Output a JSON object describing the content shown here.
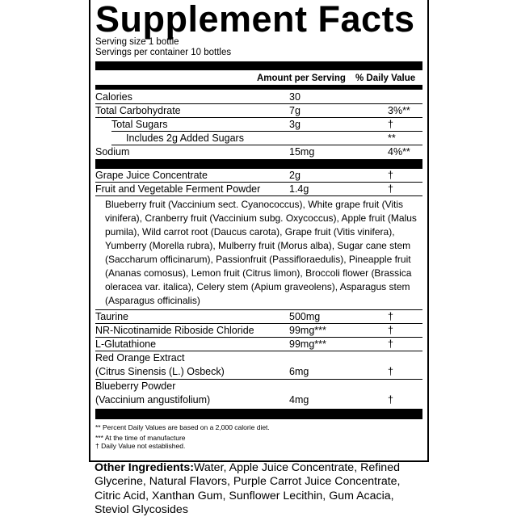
{
  "title": "Supplement Facts",
  "serving_size": "Serving size 1 bottle",
  "servings_per_container": "Servings per container 10 bottles",
  "header": {
    "amount": "Amount per Serving",
    "dv": "% Daily Value"
  },
  "nutrients": [
    {
      "name": "Calories",
      "amount": "30",
      "dv": ""
    },
    {
      "name": "Total Carbohydrate",
      "amount": "7g",
      "dv": "3%**"
    },
    {
      "name": "Total Sugars",
      "amount": "3g",
      "dv": "†"
    },
    {
      "name": "Includes 2g Added Sugars",
      "amount": "",
      "dv": "**"
    },
    {
      "name": "Sodium",
      "amount": "15mg",
      "dv": "4%**"
    }
  ],
  "ingredients": [
    {
      "name": "Grape Juice Concentrate",
      "amount": "2g",
      "dv": "†"
    },
    {
      "name": "Fruit and Vegetable Ferment Powder",
      "amount": "1.4g",
      "dv": "†"
    }
  ],
  "ferment_blend": "Blueberry fruit (Vaccinium sect. Cyanococcus), White grape fruit (Vitis vinifera), Cranberry fruit (Vaccinium subg. Oxycoccus), Apple fruit (Malus pumila), Wild carrot root (Daucus carota), Grape fruit (Vitis vinifera), Yumberry (Morella rubra), Mulberry fruit (Morus alba), Sugar cane stem (Saccharum officinarum), Passionfruit (Passifloraedulis), Pineapple fruit (Ananas comosus), Lemon fruit (Citrus limon), Broccoli flower (Brassica oleracea var. italica), Celery stem (Apium graveolens), Asparagus stem (Asparagus officinalis)",
  "ingredients2": [
    {
      "name": "Taurine",
      "amount": "500mg",
      "dv": "†"
    },
    {
      "name": "NR-Nicotinamide Riboside Chloride",
      "amount": "99mg***",
      "dv": "†"
    },
    {
      "name": "L-Glutathione",
      "amount": "99mg***",
      "dv": "†"
    }
  ],
  "ingredients3": [
    {
      "name": "Red Orange Extract",
      "sub": "(Citrus Sinensis (L.) Osbeck)",
      "amount": "6mg",
      "dv": "†"
    },
    {
      "name": "Blueberry Powder",
      "sub": "(Vaccinium angustifolium)",
      "amount": "4mg",
      "dv": "†"
    }
  ],
  "footnotes": [
    "** Percent Daily Values are based on a 2,000 calorie diet.",
    "*** At the time of manufacture",
    "† Daily Value not established."
  ],
  "other_label": "Other Ingredients:",
  "other_text": "Water, Apple Juice Concentrate, Refined Glycerine, Natural Flavors, Purple Carrot Juice Concentrate, Citric Acid, Xanthan Gum, Sunflower Lecithin, Gum Acacia, Steviol Glycosides"
}
